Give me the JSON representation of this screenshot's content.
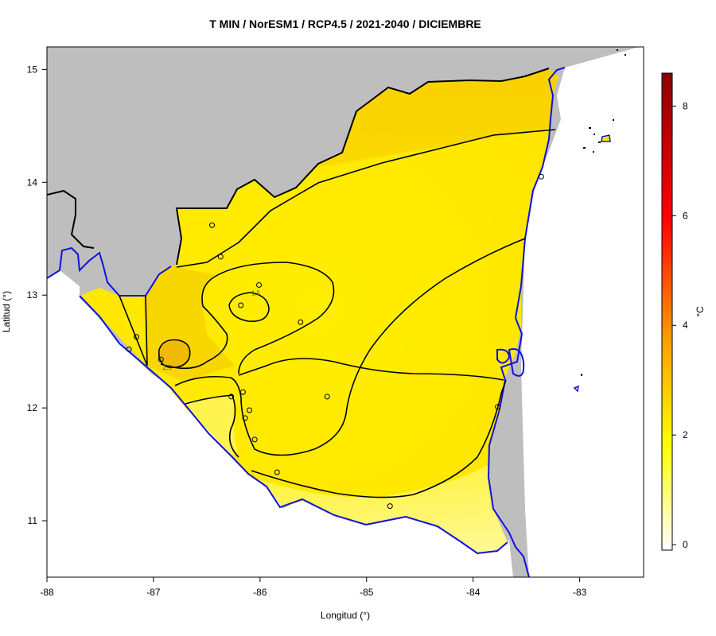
{
  "colors": {
    "land_mask": "#bebebe",
    "coast_line": "#1010e0",
    "contour_line": "#000000"
  },
  "chart_data": {
    "type": "heatmap",
    "title": "T MIN / NorESM1 / RCP4.5 / 2021-2040 / DICIEMBRE",
    "xlabel": "Longitud (°)",
    "ylabel": "Latitud (°)",
    "xlim": [
      -88,
      -82.4
    ],
    "ylim": [
      10.5,
      15.2
    ],
    "x_ticks": [
      -88,
      -87,
      -86,
      -85,
      -84,
      -83
    ],
    "x_tick_labels": [
      "-88",
      "-87",
      "-86",
      "-85",
      "-84",
      "-83"
    ],
    "y_ticks": [
      11,
      12,
      13,
      14,
      15
    ],
    "y_tick_labels": [
      "11",
      "12",
      "13",
      "14",
      "15"
    ],
    "colorbar": {
      "label": "°C",
      "range": [
        -0.1,
        8.6
      ],
      "ticks": [
        0,
        2,
        4,
        6,
        8
      ],
      "tick_labels": [
        "0",
        "2",
        "4",
        "6",
        "8"
      ],
      "colors": [
        "#ffffff",
        "#ffff00",
        "#ff9900",
        "#ff0000",
        "#8b0000"
      ]
    },
    "contour_labels": [
      {
        "text": "1.5",
        "lon": -86.04,
        "lat": 13.02
      },
      {
        "text": "2.5",
        "lon": -86.87,
        "lat": 12.36
      }
    ],
    "stations": [
      {
        "lon": -86.45,
        "lat": 13.62
      },
      {
        "lon": -86.37,
        "lat": 13.34
      },
      {
        "lon": -86.01,
        "lat": 13.09
      },
      {
        "lon": -86.18,
        "lat": 12.91
      },
      {
        "lon": -85.62,
        "lat": 12.76
      },
      {
        "lon": -87.16,
        "lat": 12.63
      },
      {
        "lon": -87.23,
        "lat": 12.52
      },
      {
        "lon": -86.93,
        "lat": 12.43
      },
      {
        "lon": -86.16,
        "lat": 12.14
      },
      {
        "lon": -86.27,
        "lat": 12.1
      },
      {
        "lon": -85.37,
        "lat": 12.1
      },
      {
        "lon": -86.1,
        "lat": 11.98
      },
      {
        "lon": -86.14,
        "lat": 11.91
      },
      {
        "lon": -86.05,
        "lat": 11.72
      },
      {
        "lon": -85.84,
        "lat": 11.43
      },
      {
        "lon": -84.78,
        "lat": 11.13
      },
      {
        "lon": -83.77,
        "lat": 12.01
      },
      {
        "lon": -83.36,
        "lat": 14.05
      }
    ]
  }
}
